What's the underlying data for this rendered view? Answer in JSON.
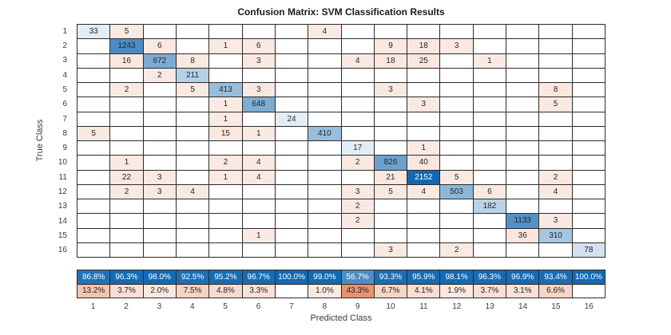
{
  "figure": {
    "title": "Confusion Matrix: SVM Classification Results",
    "xlabel": "Predicted Class",
    "ylabel": "True Class"
  },
  "chart_data": {
    "type": "heatmap",
    "subtype": "confusion-matrix",
    "classes": [
      "1",
      "2",
      "3",
      "4",
      "5",
      "6",
      "7",
      "8",
      "9",
      "10",
      "11",
      "12",
      "13",
      "14",
      "15",
      "16"
    ],
    "matrix": [
      [
        33,
        5,
        0,
        0,
        0,
        0,
        0,
        4,
        0,
        0,
        0,
        0,
        0,
        0,
        0,
        0
      ],
      [
        0,
        1243,
        6,
        0,
        1,
        6,
        0,
        0,
        0,
        9,
        18,
        3,
        0,
        0,
        0,
        0
      ],
      [
        0,
        16,
        672,
        8,
        0,
        3,
        0,
        0,
        4,
        18,
        25,
        0,
        1,
        0,
        0,
        0
      ],
      [
        0,
        0,
        2,
        211,
        0,
        0,
        0,
        0,
        0,
        0,
        0,
        0,
        0,
        0,
        0,
        0
      ],
      [
        0,
        2,
        0,
        5,
        413,
        3,
        0,
        0,
        0,
        3,
        0,
        0,
        0,
        0,
        8,
        0
      ],
      [
        0,
        0,
        0,
        0,
        1,
        648,
        0,
        0,
        0,
        0,
        3,
        0,
        0,
        0,
        5,
        0
      ],
      [
        0,
        0,
        0,
        0,
        1,
        0,
        24,
        0,
        0,
        0,
        0,
        0,
        0,
        0,
        0,
        0
      ],
      [
        5,
        0,
        0,
        0,
        15,
        1,
        0,
        410,
        0,
        0,
        0,
        0,
        0,
        0,
        0,
        0
      ],
      [
        0,
        0,
        0,
        0,
        0,
        0,
        0,
        0,
        17,
        0,
        1,
        0,
        0,
        0,
        0,
        0
      ],
      [
        0,
        1,
        0,
        0,
        2,
        4,
        0,
        0,
        2,
        826,
        40,
        0,
        0,
        0,
        0,
        0
      ],
      [
        0,
        22,
        3,
        0,
        1,
        4,
        0,
        0,
        0,
        21,
        2152,
        5,
        0,
        0,
        2,
        0
      ],
      [
        0,
        2,
        3,
        4,
        0,
        0,
        0,
        0,
        3,
        5,
        4,
        503,
        6,
        0,
        4,
        0
      ],
      [
        0,
        0,
        0,
        0,
        0,
        0,
        0,
        0,
        2,
        0,
        0,
        0,
        182,
        0,
        0,
        0
      ],
      [
        0,
        0,
        0,
        0,
        0,
        0,
        0,
        0,
        2,
        0,
        0,
        0,
        0,
        1133,
        3,
        0
      ],
      [
        0,
        0,
        0,
        0,
        0,
        1,
        0,
        0,
        0,
        0,
        0,
        0,
        0,
        36,
        310,
        0
      ],
      [
        0,
        0,
        0,
        0,
        0,
        0,
        0,
        0,
        0,
        3,
        0,
        2,
        0,
        0,
        0,
        78
      ]
    ],
    "max_value": 2152,
    "column_summary": {
      "correct_pct": [
        "86.8%",
        "96.3%",
        "98.0%",
        "92.5%",
        "95.2%",
        "96.7%",
        "100.0%",
        "99.0%",
        "56.7%",
        "93.3%",
        "95.9%",
        "98.1%",
        "96.3%",
        "96.9%",
        "93.4%",
        "100.0%"
      ],
      "incorrect_pct": [
        "13.2%",
        "3.7%",
        "2.0%",
        "7.5%",
        "4.8%",
        "3.3%",
        "",
        "1.0%",
        "43.3%",
        "6.7%",
        "4.1%",
        "1.9%",
        "3.7%",
        "3.1%",
        "6.6%",
        ""
      ]
    },
    "layout": {
      "grid_on": true,
      "summary_position": "bottom"
    },
    "colors": {
      "diagonal_base": "#1268b1",
      "off_diagonal_base": "#d95319",
      "grid_line": "#2b2b2b",
      "cell_text": "#262626",
      "inverse_text": "#ffffff",
      "background": "#ffffff"
    }
  }
}
